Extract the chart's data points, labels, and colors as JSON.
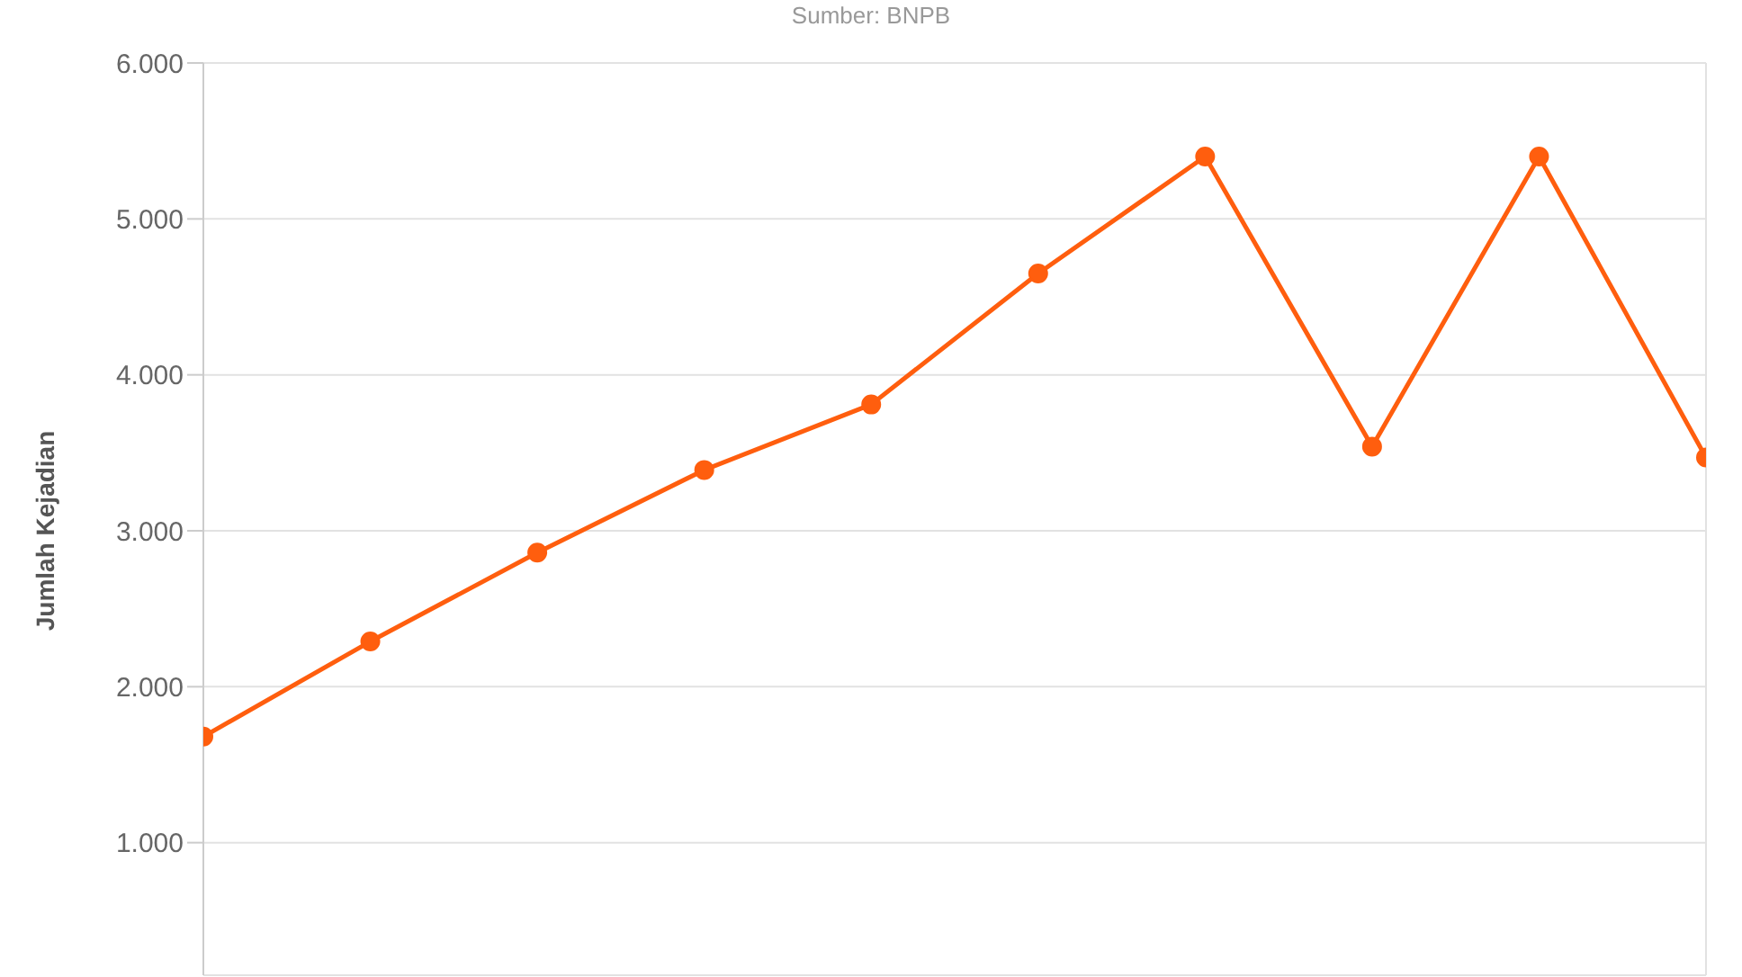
{
  "chart_data": {
    "type": "line",
    "annotations": [
      "Sumber: BNPB"
    ],
    "ylabel": "Jumlah Kejadian",
    "categories": [
      null,
      null,
      null,
      null,
      null,
      null,
      null,
      null,
      null,
      null
    ],
    "series": [
      {
        "color": "#ff5e0e",
        "values": [
          1680,
          2290,
          2860,
          3390,
          3810,
          4650,
          5400,
          3540,
          5400,
          3470
        ]
      }
    ],
    "ylim": [
      150,
      6000
    ],
    "yticks": [
      {
        "value": 1000,
        "label": "1.000"
      },
      {
        "value": 2000,
        "label": "2.000"
      },
      {
        "value": 3000,
        "label": "3.000"
      },
      {
        "value": 4000,
        "label": "4.000"
      },
      {
        "value": 5000,
        "label": "5.000"
      },
      {
        "value": 6000,
        "label": "6.000"
      }
    ],
    "grid": true,
    "tick_labels": "y",
    "marker": "circle",
    "line_style": "solid"
  }
}
